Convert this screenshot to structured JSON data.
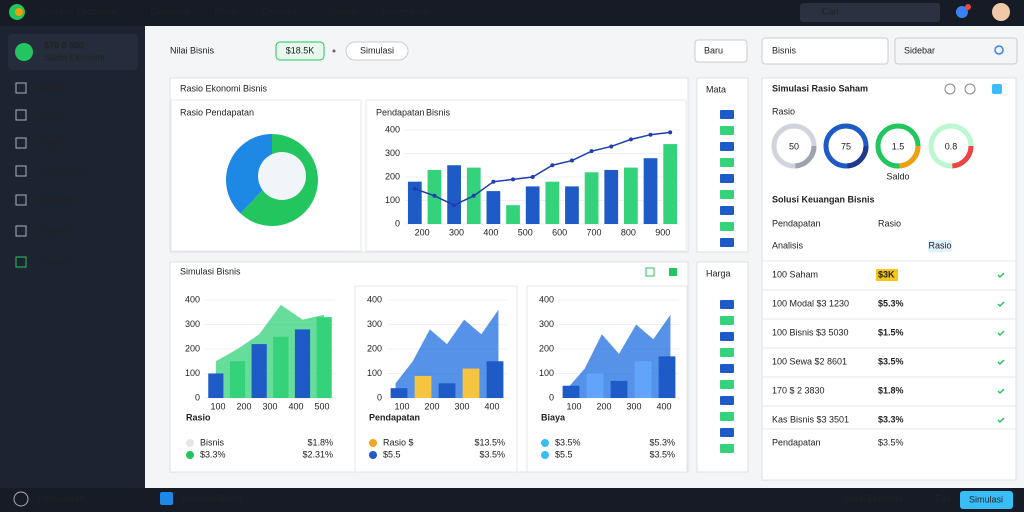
{
  "topbar": {
    "brand": "Simulasi Ekonomia",
    "menu": [
      "Ekonomia",
      "Bisnis",
      "Operator",
      "Startup",
      "Kenegaraan"
    ],
    "search": "Cari"
  },
  "sidebar": {
    "balance": "$70 0 500",
    "balance_sub": "Saldo Ekonomi",
    "items": [
      "Saham",
      "Bisnis",
      "Pabrik",
      "Bursa Kota",
      "Ekonomi",
      "Properti",
      "Statistik"
    ],
    "footer": "Pengaturan"
  },
  "header": {
    "title": "Nilai Bisnis",
    "badge": "$18.5K",
    "pill": "Simulasi",
    "dropdown": "Baru",
    "select": "Bisnis",
    "search": "Sidebar"
  },
  "ratio_card": {
    "title": "Rasio Ekonomi Bisnis",
    "pie": {
      "title": "Rasio Pendapatan",
      "values": [
        62,
        38
      ],
      "colors": [
        "#22c55e",
        "#1e88e5"
      ]
    },
    "bar": {
      "title": "Pendapatan",
      "title_accent": "Bisnis",
      "ylim": [
        0,
        400
      ],
      "yticks": [
        0,
        100,
        200,
        300,
        400
      ],
      "xlabels": [
        "200",
        "300",
        "400",
        "500",
        "600",
        "700",
        "800",
        "900"
      ],
      "bars": [
        180,
        230,
        250,
        240,
        140,
        80,
        160,
        180,
        160,
        220,
        230,
        240,
        280,
        340
      ],
      "bar_colors": [
        "#1e5bc6",
        "#34d27a"
      ],
      "line": [
        150,
        120,
        80,
        120,
        180,
        190,
        200,
        250,
        270,
        310,
        330,
        360,
        380,
        390
      ],
      "line_color": "#1f3fae"
    }
  },
  "side_a": {
    "title": "Mata"
  },
  "side_b": {
    "title": "Harga"
  },
  "sim_card": {
    "title": "Simulasi Bisnis",
    "charts": [
      {
        "ylim": [
          0,
          400
        ],
        "yticks": [
          0,
          100,
          200,
          300,
          400
        ],
        "xlabels": [
          "100",
          "200",
          "300",
          "400",
          "500"
        ],
        "bars": [
          100,
          150,
          220,
          250,
          280,
          330
        ],
        "bar_colors": [
          "#1e5bc6",
          "#34d27a"
        ],
        "area": [
          150,
          200,
          260,
          380,
          320,
          340
        ],
        "area_color": "#34d27a",
        "heading": "Rasio",
        "legend": [
          {
            "label": "Bisnis",
            "value": "$1.8%",
            "color": "#e5e7eb"
          },
          {
            "label": "$3.3%",
            "value": "$2.31%",
            "color": "#22c55e"
          }
        ]
      },
      {
        "ylim": [
          0,
          400
        ],
        "yticks": [
          0,
          100,
          200,
          300,
          400
        ],
        "xlabels": [
          "100",
          "200",
          "300",
          "400"
        ],
        "bars": [
          40,
          90,
          60,
          120,
          150
        ],
        "bar_colors": [
          "#1e5bc6",
          "#f5c542"
        ],
        "area": [
          60,
          150,
          280,
          220,
          320,
          260,
          360
        ],
        "area_color": "#1e6fe0",
        "heading": "Pendapatan",
        "legend": [
          {
            "label": "Rasio $",
            "value": "$13.5%",
            "color": "#f5a524"
          },
          {
            "label": "$5.5",
            "value": "$3.5%",
            "color": "#1e5bc6"
          }
        ]
      },
      {
        "ylim": [
          0,
          400
        ],
        "yticks": [
          0,
          100,
          200,
          300,
          400
        ],
        "xlabels": [
          "100",
          "200",
          "300",
          "400"
        ],
        "bars": [
          50,
          100,
          70,
          150,
          170
        ],
        "bar_colors": [
          "#1e5bc6",
          "#60a5fa"
        ],
        "area": [
          40,
          120,
          260,
          180,
          300,
          240,
          340
        ],
        "area_color": "#1e6fe0",
        "heading": "Biaya",
        "legend": [
          {
            "label": "$3.5%",
            "value": "$5.3%",
            "color": "#38bdf8"
          },
          {
            "label": "$5.5",
            "value": "$3.5%",
            "color": "#38bdf8"
          }
        ]
      }
    ]
  },
  "right_panel": {
    "title": "Simulasi Rasio Saham",
    "subtitle": "Rasio",
    "gauges": [
      "50",
      "75",
      "1.5",
      "0.8"
    ],
    "gauge_note": "Saldo",
    "section": "Solusi Keuangan Bisnis",
    "sub_label": "Pendapatan",
    "sub_value": "Rasio",
    "analysis": "Analisis",
    "analysis_badge": "Rasio",
    "rows": [
      {
        "label": "100 Saham",
        "badge": "$3K",
        "color": "#f5c518"
      },
      {
        "label": "100 Modal $3 1230",
        "badge": "$5.3%",
        "color": "#ef4444"
      },
      {
        "label": "100 Bisnis $3 5030",
        "badge": "$1.5%",
        "color": "#22c55e"
      },
      {
        "label": "100 Sewa $2 8601",
        "badge": "$3.5%",
        "color": "#ef4444"
      },
      {
        "label": "170 $ 2 3830",
        "badge": "$1.8%",
        "color": "#eab308"
      },
      {
        "label": "Kas Bisnis $3 3501",
        "badge": "$3.3%",
        "color": "#38bdf8"
      }
    ],
    "footer": "Pendapatan",
    "footer_badge": "$3.5%"
  },
  "bottombar": {
    "title": "Simulasi Bisnis",
    "version": "Versi Ekonomi",
    "edit": "Edit",
    "button": "Simulasi"
  }
}
